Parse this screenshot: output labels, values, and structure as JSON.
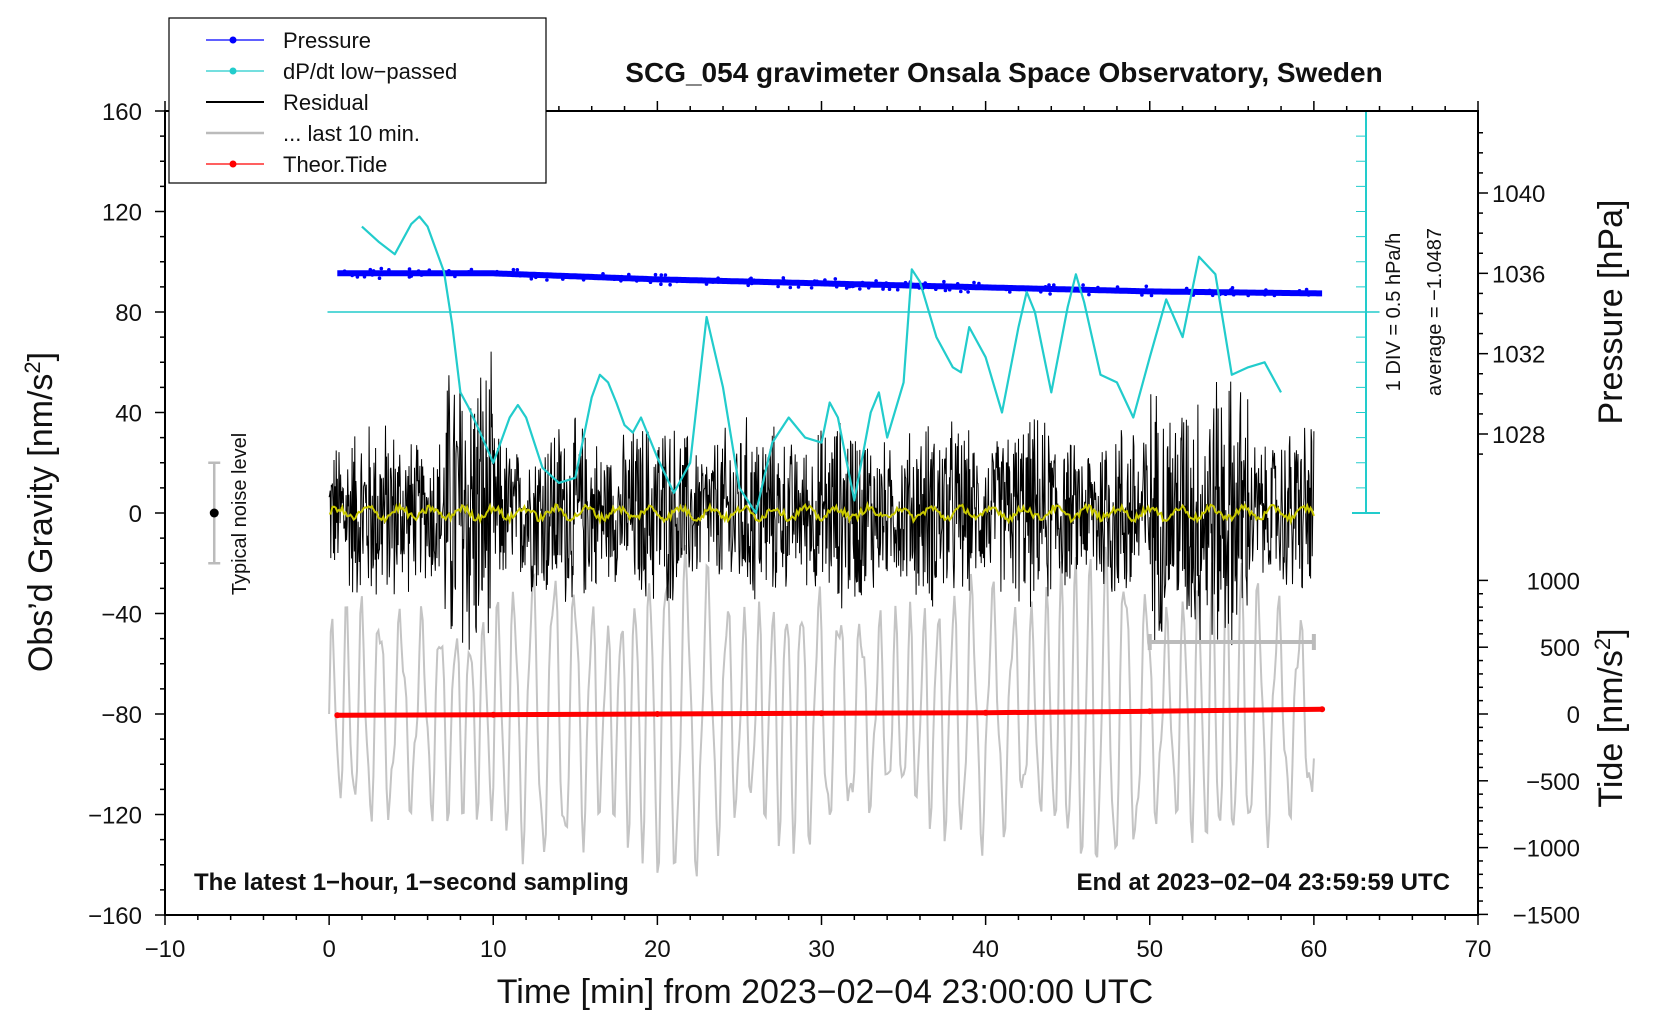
{
  "chart_data": {
    "type": "line",
    "title": "SCG_054 gravimeter Onsala Space Observatory, Sweden",
    "xlabel": "Time [min] from 2023−02−04 23:00:00 UTC",
    "ylabel_left": "Obs’d Gravity [nm/s",
    "ylabel_left_suffix": "]",
    "ylabel_pressure": "Pressure [hPa]",
    "ylabel_tide": "Tide [nm/s",
    "ylabel_tide_suffix": "]",
    "unit_exponent": "2",
    "xlim": [
      -10,
      70
    ],
    "ylim": [
      -160,
      160
    ],
    "x_ticks": [
      "−10",
      "0",
      "10",
      "20",
      "30",
      "40",
      "50",
      "60",
      "70"
    ],
    "y_ticks": [
      "160",
      "120",
      "80",
      "40",
      "0",
      "−40",
      "−80",
      "−120",
      "−160"
    ],
    "pressure_ticks": [
      "1040",
      "1036",
      "1032",
      "1028"
    ],
    "pressure_values": [
      1040,
      1036,
      1032,
      1028
    ],
    "tide_ticks": [
      "1000",
      "500",
      "0",
      "−500",
      "−1000",
      "−1500"
    ],
    "tide_values": [
      1000,
      500,
      0,
      -500,
      -1000,
      -1500
    ],
    "legend": [
      {
        "label": "Pressure",
        "color": "#0000ff",
        "style": "line-dot"
      },
      {
        "label": "dP/dt low−passed",
        "color": "#22cccc",
        "style": "line-dot"
      },
      {
        "label": "Residual",
        "color": "#000000",
        "style": "line"
      },
      {
        "label": "... last 10 min.",
        "color": "#bbbbbb",
        "style": "line"
      },
      {
        "label": "Theor.Tide",
        "color": "#ff0000",
        "style": "line-dot"
      }
    ],
    "annotations": {
      "left_note": "The latest 1−hour, 1−second sampling",
      "right_note": "End at 2023−02−04 23:59:59 UTC",
      "noise_label": "Typical noise level",
      "div_label": "1 DIV = 0.5 hPa/h",
      "average_label": "average = −1.0487"
    },
    "noise_level": {
      "x": -7,
      "center": 0,
      "half_range": 20
    },
    "last_10_min": [
      50,
      60
    ],
    "series": [
      {
        "name": "Pressure",
        "color": "#0000ff",
        "unit": "hPa",
        "x": [
          0.5,
          10,
          20,
          30,
          40,
          50,
          60.5
        ],
        "y": [
          1036.0,
          1036.0,
          1035.7,
          1035.5,
          1035.3,
          1035.1,
          1035.0
        ]
      },
      {
        "name": "Theor.Tide",
        "color": "#ff0000",
        "unit": "nm/s2",
        "x": [
          0.5,
          10,
          20,
          30,
          40,
          50,
          60.5
        ],
        "y": [
          -10,
          -5,
          0,
          5,
          10,
          20,
          35
        ]
      },
      {
        "name": "dP/dt low-passed",
        "color": "#22cccc",
        "x": [
          2,
          3,
          4,
          5,
          5.5,
          6,
          7,
          7.5,
          8,
          8.5,
          9,
          10,
          11,
          11.5,
          12,
          13,
          14,
          15,
          16,
          16.5,
          17,
          17.5,
          18,
          18.5,
          19,
          20,
          21,
          22,
          23,
          24,
          25,
          26,
          27,
          28,
          29,
          30,
          30.5,
          31,
          32,
          33,
          33.5,
          34,
          35,
          35.5,
          36,
          37,
          38,
          38.5,
          39,
          40,
          41,
          42,
          42.5,
          43,
          44,
          45,
          45.5,
          46,
          47,
          48,
          49,
          50,
          51,
          52,
          53,
          54,
          55,
          56,
          57,
          58
        ],
        "y": [
          114,
          108,
          103,
          115,
          118,
          114,
          96,
          75,
          48,
          42,
          35,
          20,
          38,
          43,
          38,
          18,
          12,
          14,
          46,
          55,
          52,
          44,
          35,
          32,
          38,
          22,
          8,
          20,
          78,
          50,
          10,
          0,
          28,
          38,
          30,
          28,
          44,
          38,
          5,
          40,
          48,
          30,
          52,
          97,
          92,
          70,
          58,
          56,
          74,
          62,
          40,
          74,
          88,
          80,
          48,
          82,
          95,
          84,
          55,
          52,
          38,
          62,
          85,
          70,
          102,
          95,
          55,
          58,
          60,
          48
        ]
      },
      {
        "name": "dP/dt reference line",
        "color": "#22cccc",
        "x": [
          0,
          64
        ],
        "y": [
          80,
          80
        ]
      }
    ]
  }
}
